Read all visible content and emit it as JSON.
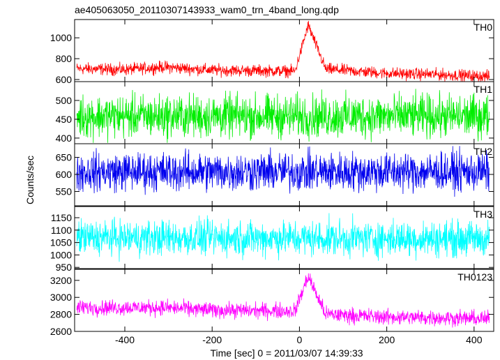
{
  "chart_data": {
    "type": "line",
    "title": "ae405063050_20110307143933_wam0_trn_4band_long.qdp",
    "xlabel": "Time [sec] 0 = 2011/03/07 14:39:33",
    "ylabel": "Counts/sec",
    "xlim": [
      -515,
      445
    ],
    "xticks": [
      -400,
      -200,
      0,
      200,
      400
    ],
    "panels": [
      {
        "name": "TH0",
        "color": "#ff0000",
        "ylim": [
          580,
          1175
        ],
        "yticks": [
          600,
          800,
          1000
        ],
        "baseline": [
          [
            -515,
            705
          ],
          [
            -400,
            695
          ],
          [
            -310,
            720
          ],
          [
            -200,
            690
          ],
          [
            -100,
            685
          ],
          [
            -10,
            680
          ],
          [
            20,
            1120
          ],
          [
            60,
            700
          ],
          [
            200,
            660
          ],
          [
            300,
            650
          ],
          [
            430,
            630
          ]
        ],
        "noise": 28
      },
      {
        "name": "TH1",
        "color": "#00ee00",
        "ylim": [
          385,
          550
        ],
        "yticks": [
          400,
          450,
          500
        ],
        "baseline": [
          [
            -515,
            458
          ],
          [
            430,
            458
          ]
        ],
        "noise": 28
      },
      {
        "name": "TH2",
        "color": "#0000ee",
        "ylim": [
          508,
          690
        ],
        "yticks": [
          550,
          600,
          650
        ],
        "baseline": [
          [
            -515,
            608
          ],
          [
            430,
            608
          ]
        ],
        "noise": 28
      },
      {
        "name": "TH3",
        "color": "#00ffff",
        "ylim": [
          945,
          1195
        ],
        "yticks": [
          950,
          1000,
          1050,
          1100,
          1150
        ],
        "baseline": [
          [
            -515,
            1070
          ],
          [
            430,
            1065
          ]
        ],
        "noise": 35
      },
      {
        "name": "TH0123",
        "color": "#ff00ff",
        "ylim": [
          2600,
          3330
        ],
        "yticks": [
          2600,
          2800,
          3000,
          3200
        ],
        "baseline": [
          [
            -515,
            2880
          ],
          [
            -310,
            2880
          ],
          [
            -200,
            2850
          ],
          [
            -10,
            2840
          ],
          [
            20,
            3250
          ],
          [
            60,
            2800
          ],
          [
            200,
            2770
          ],
          [
            430,
            2750
          ]
        ],
        "noise": 45
      }
    ]
  }
}
